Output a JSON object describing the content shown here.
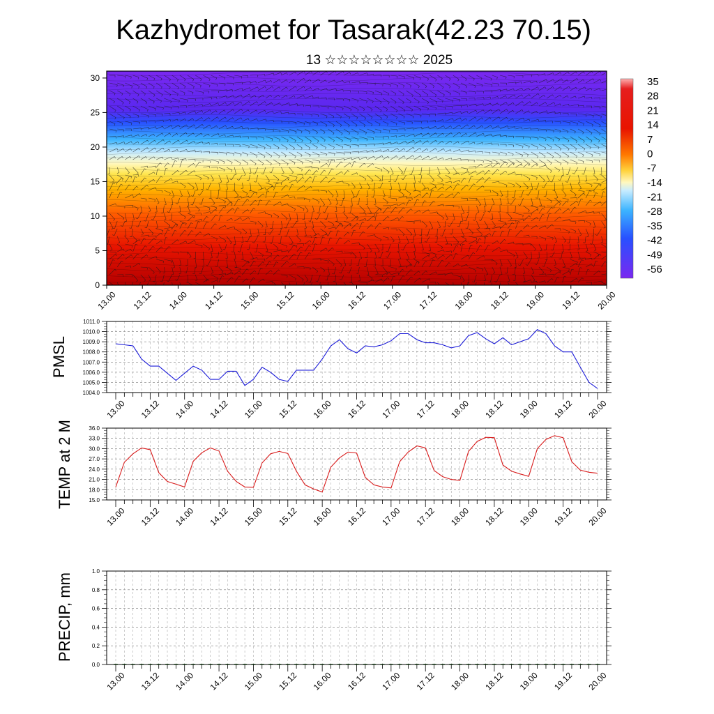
{
  "title": "Kazhydromet for Tasarak(42.23 70.15)",
  "subtitle": "13 ☆☆☆☆☆☆☆☆ 2025",
  "time_labels": [
    "13.00",
    "13.12",
    "14.00",
    "14.12",
    "15.00",
    "15.12",
    "16.00",
    "16.12",
    "17.00",
    "17.12",
    "18.00",
    "18.12",
    "19.00",
    "19.12",
    "20.00"
  ],
  "chart_data": [
    {
      "type": "heatmap",
      "name": "cross-section",
      "yticks": [
        "0",
        "5",
        "10",
        "15",
        "20",
        "25",
        "30"
      ],
      "ylim": [
        0,
        31
      ],
      "colorbar": [
        "35",
        "28",
        "21",
        "14",
        "7",
        "0",
        "-7",
        "-14",
        "-21",
        "-28",
        "-35",
        "-42",
        "-49",
        "-56"
      ],
      "colors": {
        "hot": "#c80000",
        "warm": "#ff5a00",
        "mid": "#ffd23c",
        "cold": "#3cb4ff",
        "cold2": "#2850ff",
        "top": "#7a28f0"
      }
    },
    {
      "type": "line",
      "ylabel": "PMSL",
      "color": "#1a1ad8",
      "ylim": [
        1004,
        1011
      ],
      "yticks": [
        "1004.0",
        "1005.0",
        "1006.0",
        "1007.0",
        "1008.0",
        "1009.0",
        "1010.0",
        "1011.0"
      ],
      "values": [
        1008.8,
        1008.7,
        1008.6,
        1007.3,
        1006.6,
        1006.6,
        1005.9,
        1005.2,
        1005.9,
        1006.6,
        1006.2,
        1005.3,
        1005.3,
        1006.1,
        1006.1,
        1004.7,
        1005.3,
        1006.5,
        1006.0,
        1005.3,
        1005.1,
        1006.2,
        1006.2,
        1006.2,
        1007.3,
        1008.6,
        1009.2,
        1008.3,
        1007.9,
        1008.6,
        1008.5,
        1008.7,
        1009.1,
        1009.8,
        1009.8,
        1009.2,
        1008.9,
        1008.9,
        1008.7,
        1008.4,
        1008.6,
        1009.6,
        1009.9,
        1009.3,
        1008.8,
        1009.4,
        1008.7,
        1009.0,
        1009.3,
        1010.2,
        1009.8,
        1008.6,
        1008.0,
        1008.0,
        1006.5,
        1005.0,
        1004.4
      ]
    },
    {
      "type": "line",
      "ylabel": "TEMP at 2 M",
      "color": "#d81a1a",
      "ylim": [
        15,
        36
      ],
      "yticks": [
        "15.0",
        "18.0",
        "21.0",
        "24.0",
        "27.0",
        "30.0",
        "33.0",
        "36.0"
      ],
      "values": [
        18.8,
        26.0,
        28.5,
        30.2,
        29.7,
        23.0,
        20.4,
        19.6,
        18.8,
        26.3,
        28.8,
        30.2,
        29.3,
        23.4,
        20.4,
        18.8,
        18.7,
        25.8,
        28.5,
        29.2,
        28.6,
        23.4,
        19.4,
        18.2,
        17.3,
        24.6,
        27.3,
        29.0,
        28.7,
        21.6,
        19.4,
        18.8,
        18.5,
        26.2,
        29.0,
        30.8,
        30.2,
        23.6,
        21.8,
        21.0,
        20.7,
        29.2,
        32.1,
        33.3,
        33.2,
        25.2,
        23.4,
        22.6,
        21.9,
        30.0,
        32.7,
        33.8,
        33.2,
        26.2,
        23.7,
        23.1,
        22.8
      ]
    },
    {
      "type": "bar",
      "ylabel": "PRECIP, mm",
      "color": "#1a7a1a",
      "ylim": [
        0,
        1
      ],
      "yticks": [
        "0.0",
        "0.2",
        "0.4",
        "0.6",
        "0.8",
        "1.0"
      ],
      "values": [
        0,
        0,
        0,
        0,
        0,
        0,
        0,
        0,
        0,
        0,
        0,
        0,
        0,
        0,
        0,
        0,
        0,
        0,
        0,
        0,
        0,
        0,
        0,
        0,
        0,
        0,
        0,
        0,
        0,
        0,
        0,
        0,
        0,
        0,
        0,
        0,
        0,
        0,
        0,
        0,
        0,
        0,
        0,
        0,
        0,
        0,
        0,
        0,
        0,
        0,
        0,
        0,
        0,
        0,
        0,
        0,
        0
      ]
    }
  ]
}
